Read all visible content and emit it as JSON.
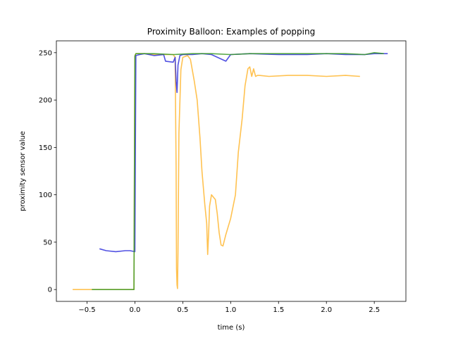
{
  "chart_data": {
    "type": "line",
    "title": "Proximity Balloon: Examples of popping",
    "xlabel": "time (s)",
    "ylabel": "proximity sensor value",
    "xlim": [
      -0.82,
      2.83
    ],
    "ylim": [
      -12.5,
      262.5
    ],
    "xticks": [
      -0.5,
      0.0,
      0.5,
      1.0,
      1.5,
      2.0,
      2.5
    ],
    "xtick_labels": [
      "−0.5",
      "0.0",
      "0.5",
      "1.0",
      "1.5",
      "2.0",
      "2.5"
    ],
    "yticks": [
      0,
      50,
      100,
      150,
      200,
      250
    ],
    "ytick_labels": [
      "0",
      "50",
      "100",
      "150",
      "200",
      "250"
    ],
    "grid": false,
    "legend": "none",
    "series": [
      {
        "color": "#FFB733",
        "x": [
          -0.65,
          -0.45,
          -0.01,
          0.0,
          0.01,
          0.1,
          0.2,
          0.3,
          0.35,
          0.4,
          0.42,
          0.43,
          0.435,
          0.44,
          0.445,
          0.45,
          0.46,
          0.48,
          0.5,
          0.55,
          0.58,
          0.62,
          0.65,
          0.68,
          0.7,
          0.73,
          0.75,
          0.76,
          0.77,
          0.78,
          0.8,
          0.84,
          0.86,
          0.88,
          0.9,
          0.92,
          0.95,
          1.0,
          1.05,
          1.08,
          1.12,
          1.15,
          1.18,
          1.2,
          1.22,
          1.24,
          1.26,
          1.28,
          1.3,
          1.4,
          1.6,
          1.8,
          2.0,
          2.2,
          2.35
        ],
        "y": [
          0,
          0,
          0,
          247,
          249,
          249,
          248,
          248,
          248,
          248,
          245,
          130,
          22,
          5,
          1,
          40,
          165,
          232,
          245,
          247,
          243,
          220,
          200,
          160,
          125,
          90,
          70,
          37,
          60,
          88,
          100,
          95,
          80,
          60,
          47,
          46,
          58,
          75,
          100,
          145,
          180,
          215,
          233,
          235,
          225,
          233,
          225,
          226,
          226,
          225,
          226,
          226,
          225,
          226,
          225
        ]
      },
      {
        "color": "#3333DD",
        "x": [
          -0.37,
          -0.3,
          -0.2,
          -0.1,
          -0.05,
          0.0,
          0.01,
          0.05,
          0.1,
          0.2,
          0.3,
          0.32,
          0.4,
          0.42,
          0.43,
          0.44,
          0.45,
          0.47,
          0.5,
          0.6,
          0.7,
          0.8,
          0.95,
          1.0,
          1.2,
          1.5,
          1.8,
          2.0,
          2.2,
          2.4,
          2.5,
          2.64
        ],
        "y": [
          43,
          41,
          40,
          41,
          41,
          40,
          247,
          248,
          249,
          247,
          248,
          241,
          240,
          245,
          220,
          208,
          237,
          247,
          248,
          248,
          249,
          248,
          241,
          248,
          249,
          248,
          248,
          249,
          248,
          248,
          249,
          249
        ]
      },
      {
        "color": "#3A9A28",
        "x": [
          -0.45,
          -0.2,
          -0.01,
          0.0,
          0.01,
          0.1,
          0.2,
          0.4,
          0.6,
          0.8,
          1.0,
          1.2,
          1.4,
          1.6,
          1.8,
          2.0,
          2.2,
          2.4,
          2.5,
          2.6
        ],
        "y": [
          0,
          0,
          0,
          246,
          249,
          249,
          249,
          248,
          249,
          249,
          248,
          249,
          249,
          249,
          249,
          249,
          249,
          248,
          250,
          249
        ]
      }
    ]
  }
}
